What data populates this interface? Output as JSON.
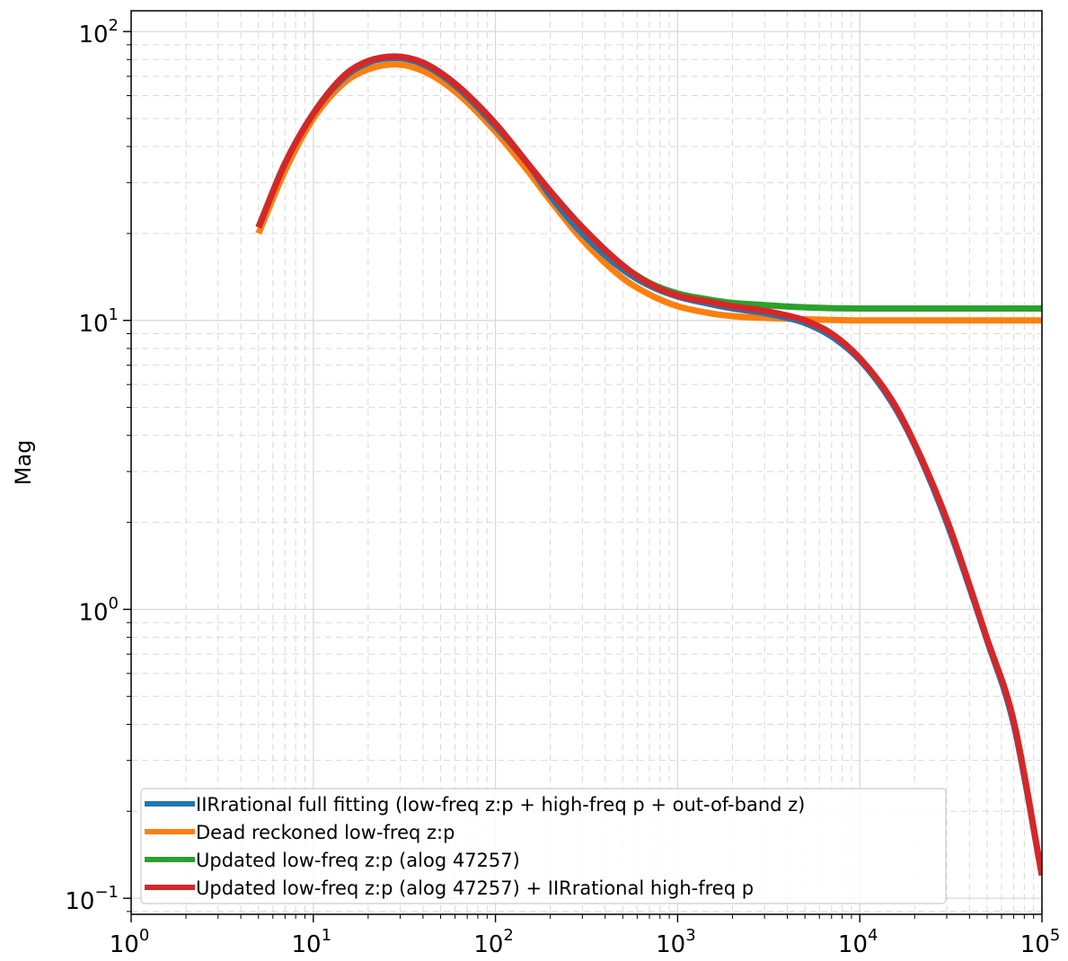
{
  "chart_data": {
    "type": "line",
    "title": "",
    "xlabel": "",
    "ylabel": "Mag",
    "xscale": "log",
    "yscale": "log",
    "xlim": [
      1,
      100000
    ],
    "ylim": [
      0.088,
      118
    ],
    "grid": "major solid, minor dashed",
    "legend_position": "lower-left",
    "x_ticks": [
      {
        "base": "10",
        "exp": "0"
      },
      {
        "base": "10",
        "exp": "1"
      },
      {
        "base": "10",
        "exp": "2"
      },
      {
        "base": "10",
        "exp": "3"
      },
      {
        "base": "10",
        "exp": "4"
      },
      {
        "base": "10",
        "exp": "5"
      }
    ],
    "y_ticks": [
      {
        "base": "10",
        "exp": "−1"
      },
      {
        "base": "10",
        "exp": "0"
      },
      {
        "base": "10",
        "exp": "1"
      },
      {
        "base": "10",
        "exp": "2"
      }
    ],
    "series": [
      {
        "name": "IIRrational full fitting (low-freq z:p + high-freq p + out-of-band z)",
        "color": "#1f77b4",
        "x": [
          5,
          7,
          10,
          15,
          20,
          28,
          40,
          60,
          100,
          150,
          200,
          300,
          500,
          700,
          1000,
          1500,
          2000,
          3000,
          4000,
          5000,
          7000,
          10000,
          15000,
          20000,
          30000,
          50000,
          70000,
          100000
        ],
        "y": [
          21,
          35,
          52,
          70,
          78,
          81,
          77,
          65,
          47,
          35,
          27,
          20,
          15,
          13.2,
          12.1,
          11.4,
          11.0,
          10.6,
          10.2,
          9.8,
          8.8,
          7.3,
          5.2,
          3.7,
          2.0,
          0.78,
          0.4,
          0.12
        ]
      },
      {
        "name": "Dead reckoned low-freq z:p",
        "color": "#ff7f0e",
        "x": [
          5,
          7,
          10,
          15,
          20,
          28,
          40,
          60,
          100,
          150,
          200,
          300,
          500,
          700,
          1000,
          1500,
          2000,
          3000,
          5000,
          10000,
          20000,
          50000,
          100000
        ],
        "y": [
          20,
          33,
          50,
          67,
          74,
          77,
          73,
          62,
          45,
          33,
          26,
          19,
          14,
          12.3,
          11.2,
          10.6,
          10.35,
          10.2,
          10.1,
          10.0,
          10.0,
          10.0,
          10.0
        ]
      },
      {
        "name": "Updated low-freq z:p (alog 47257)",
        "color": "#2ca02c",
        "x": [
          5,
          7,
          10,
          15,
          20,
          28,
          40,
          60,
          100,
          150,
          200,
          300,
          500,
          700,
          1000,
          1500,
          2000,
          3000,
          5000,
          10000,
          20000,
          50000,
          100000
        ],
        "y": [
          21,
          35,
          52,
          71,
          79,
          82,
          78,
          66,
          48,
          35,
          28,
          21,
          15.5,
          13.5,
          12.4,
          11.8,
          11.5,
          11.3,
          11.1,
          11.0,
          11.0,
          11.0,
          11.0
        ]
      },
      {
        "name": "Updated low-freq z:p (alog 47257) + IIRrational high-freq p",
        "color": "#d62728",
        "x": [
          5,
          7,
          10,
          15,
          20,
          28,
          40,
          60,
          100,
          150,
          200,
          300,
          500,
          700,
          1000,
          1500,
          2000,
          3000,
          4000,
          5000,
          7000,
          10000,
          15000,
          20000,
          30000,
          50000,
          70000,
          100000
        ],
        "y": [
          21,
          35,
          52,
          71,
          79,
          82,
          78,
          66,
          48,
          35,
          28,
          21,
          15.5,
          13.4,
          12.2,
          11.6,
          11.2,
          10.8,
          10.4,
          10.0,
          9.0,
          7.4,
          5.3,
          3.75,
          2.05,
          0.79,
          0.41,
          0.12
        ]
      }
    ]
  }
}
